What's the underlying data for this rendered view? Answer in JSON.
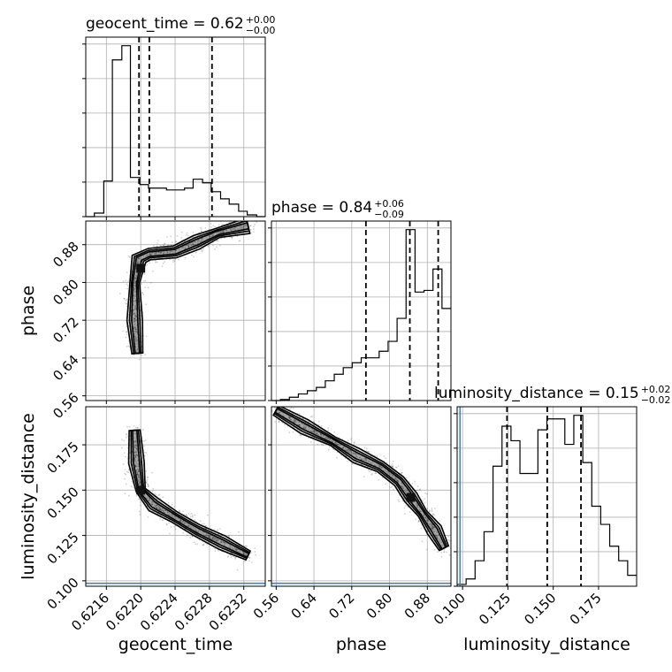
{
  "chart_data": {
    "type": "corner",
    "parameters": [
      {
        "id": "geocent_time",
        "label": "geocent_time",
        "range": [
          0.62136,
          0.62345
        ],
        "ticks": [
          0.6216,
          0.622,
          0.6224,
          0.6228,
          0.6232
        ],
        "tick_labels": [
          "0.6216",
          "0.6220",
          "0.6224",
          "0.6228",
          "0.6232"
        ],
        "title_main": "geocent_time = 0.62",
        "title_sup": "+0.00",
        "title_sub": "−0.00",
        "quantiles": [
          0.62198,
          0.6221,
          0.62283
        ],
        "hist_edges": [
          0.62136,
          0.62146,
          0.62157,
          0.62167,
          0.62178,
          0.62188,
          0.62199,
          0.62209,
          0.6222,
          0.6223,
          0.62241,
          0.62251,
          0.62261,
          0.62272,
          0.62282,
          0.62293,
          0.62303,
          0.62314,
          0.62324,
          0.62335,
          0.62345
        ],
        "hist_counts": [
          0,
          1,
          10,
          44,
          48,
          11,
          9,
          8,
          8,
          7.5,
          7.5,
          8,
          10.5,
          9.5,
          7,
          5,
          3.5,
          1.5,
          0.5,
          0
        ]
      },
      {
        "id": "phase",
        "label": "phase",
        "range": [
          0.55,
          0.93
        ],
        "ticks": [
          0.56,
          0.64,
          0.72,
          0.8,
          0.88
        ],
        "tick_labels": [
          "0.56",
          "0.64",
          "0.72",
          "0.80",
          "0.88"
        ],
        "title_main": "phase = 0.84",
        "title_sup": "+0.06",
        "title_sub": "−0.09",
        "quantiles": [
          0.75,
          0.843,
          0.903
        ],
        "hist_edges": [
          0.55,
          0.569,
          0.588,
          0.607,
          0.626,
          0.645,
          0.664,
          0.683,
          0.702,
          0.721,
          0.74,
          0.759,
          0.778,
          0.797,
          0.816,
          0.835,
          0.854,
          0.873,
          0.892,
          0.911,
          0.93
        ],
        "hist_counts": [
          0,
          0.3,
          1,
          2,
          3,
          4,
          6,
          8,
          10,
          11.5,
          13,
          13,
          15,
          18,
          25,
          52,
          33,
          33.5,
          40,
          28
        ]
      },
      {
        "id": "luminosity_distance",
        "label": "luminosity_distance",
        "range": [
          0.097,
          0.196
        ],
        "ticks": [
          0.1,
          0.125,
          0.15,
          0.175
        ],
        "tick_labels": [
          "0.100",
          "0.125",
          "0.150",
          "0.175"
        ],
        "title_main": "luminosity_distance = 0.15",
        "title_sup": "+0.02",
        "title_sub": "−0.02",
        "quantiles": [
          0.1245,
          0.1467,
          0.1653
        ],
        "hist_edges": [
          0.097,
          0.10195,
          0.1069,
          0.11185,
          0.1168,
          0.12175,
          0.1267,
          0.13165,
          0.1366,
          0.14155,
          0.1465,
          0.15145,
          0.1564,
          0.16135,
          0.1663,
          0.17125,
          0.1762,
          0.18115,
          0.1861,
          0.19105,
          0.196
        ],
        "hist_counts": [
          0.5,
          2,
          7,
          15,
          33,
          44,
          40,
          31,
          31,
          43,
          46,
          46,
          39,
          47,
          34,
          22,
          17,
          11,
          7,
          3
        ]
      }
    ],
    "truths": {
      "luminosity_distance": 0.0986
    },
    "scatter_2d": {
      "phase_vs_geocent_time": {
        "core_path": [
          [
            0.62196,
            0.65
          ],
          [
            0.62193,
            0.72
          ],
          [
            0.62193,
            0.8
          ],
          [
            0.62198,
            0.85
          ],
          [
            0.6221,
            0.86
          ],
          [
            0.6224,
            0.865
          ],
          [
            0.62265,
            0.885
          ],
          [
            0.6229,
            0.905
          ],
          [
            0.62325,
            0.92
          ]
        ],
        "density_peak": [
          0.622,
          0.83
        ]
      },
      "lumdist_vs_geocent_time": {
        "core_path": [
          [
            0.62193,
            0.183
          ],
          [
            0.62195,
            0.165
          ],
          [
            0.622,
            0.15
          ],
          [
            0.62215,
            0.142
          ],
          [
            0.6224,
            0.135
          ],
          [
            0.62265,
            0.128
          ],
          [
            0.62295,
            0.121
          ],
          [
            0.62325,
            0.114
          ]
        ],
        "density_peak": [
          0.622,
          0.15
        ]
      },
      "lumdist_vs_phase": {
        "core_path": [
          [
            0.56,
            0.194
          ],
          [
            0.62,
            0.185
          ],
          [
            0.68,
            0.177
          ],
          [
            0.73,
            0.169
          ],
          [
            0.78,
            0.163
          ],
          [
            0.82,
            0.155
          ],
          [
            0.845,
            0.146
          ],
          [
            0.87,
            0.137
          ],
          [
            0.895,
            0.128
          ],
          [
            0.915,
            0.118
          ]
        ],
        "density_peak": [
          0.845,
          0.146
        ]
      }
    }
  }
}
